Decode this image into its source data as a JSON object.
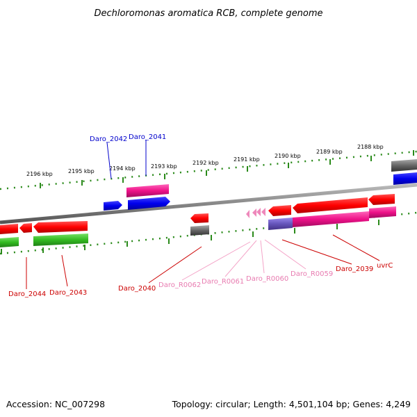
{
  "title": "Dechloromonas aromatica RCB, complete genome",
  "footer": {
    "accession": "Accession: NC_007298",
    "topology": "Topology: circular; Length: 4,501,104 bp; Genes: 4,249"
  },
  "ticks": [
    "2196 kbp",
    "2195 kbp",
    "2194 kbp",
    "2193 kbp",
    "2192 kbp",
    "2191 kbp",
    "2190 kbp",
    "2189 kbp",
    "2188 kbp"
  ],
  "genes": [
    {
      "label": "Daro_2042",
      "strand": "forward",
      "color": "#0000cc"
    },
    {
      "label": "Daro_2041",
      "strand": "forward",
      "color": "#0000cc"
    },
    {
      "label": "Daro_2044",
      "strand": "reverse",
      "color": "#cc0000"
    },
    {
      "label": "Daro_2043",
      "strand": "reverse",
      "color": "#cc0000"
    },
    {
      "label": "Daro_2040",
      "strand": "reverse",
      "color": "#cc0000"
    },
    {
      "label": "Daro_R0062",
      "strand": "reverse",
      "color": "#e87bb0"
    },
    {
      "label": "Daro_R0061",
      "strand": "reverse",
      "color": "#e87bb0"
    },
    {
      "label": "Daro_R0060",
      "strand": "reverse",
      "color": "#e87bb0"
    },
    {
      "label": "Daro_R0059",
      "strand": "reverse",
      "color": "#e87bb0"
    },
    {
      "label": "Daro_2039",
      "strand": "reverse",
      "color": "#cc0000"
    },
    {
      "label": "uvrC",
      "strand": "reverse",
      "color": "#cc0000"
    }
  ],
  "colors": {
    "backbone": "#888888",
    "tick": "#2a8a1a",
    "gene_red": "#ff0000",
    "gene_blue": "#0000ee",
    "gene_magenta": "#ee1188",
    "gene_green": "#33bb22",
    "gene_gray": "#666666",
    "gene_purple": "#6655bb",
    "rna_pink": "#ee88bb"
  }
}
